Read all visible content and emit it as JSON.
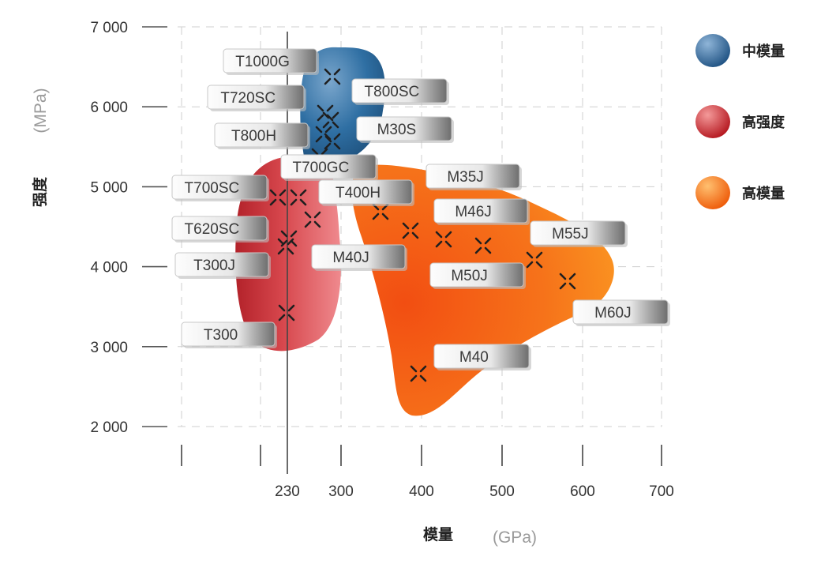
{
  "chart_data": {
    "type": "scatter",
    "title": "",
    "xlabel": "模量",
    "xunit": "(GPa)",
    "ylabel": "强度",
    "yunit": "(MPa)",
    "ylim": [
      2000,
      7000
    ],
    "yticks": [
      2000,
      3000,
      4000,
      5000,
      6000,
      7000
    ],
    "ytick_labels": [
      "2 000",
      "3 000",
      "4 000",
      "5 000",
      "6 000",
      "7 000"
    ],
    "xticks": [
      230,
      300,
      400,
      500,
      600,
      700
    ],
    "xtick_labels": [
      "230",
      "300",
      "400",
      "500",
      "600",
      "700"
    ],
    "grid": true,
    "legend_position": "right",
    "series": [
      {
        "name": "中模量",
        "color": "#2f6fa3"
      },
      {
        "name": "高强度",
        "color": "#c9302c"
      },
      {
        "name": "高模量",
        "color": "#f36a10"
      }
    ],
    "points": [
      {
        "label": "T1000G",
        "x": 294,
        "y": 6350
      },
      {
        "label": "T720SC",
        "x": 262,
        "y": 5950
      },
      {
        "label": "T800SC",
        "x": 292,
        "y": 5950
      },
      {
        "label": "T800H",
        "x": 294,
        "y": 5500
      },
      {
        "label": "M30S",
        "x": 294,
        "y": 5750
      },
      {
        "label": "T700GC",
        "x": 280,
        "y": 5600
      },
      {
        "label": "T700SC",
        "x": 230,
        "y": 4850
      },
      {
        "label": "T620SC",
        "x": 265,
        "y": 4550
      },
      {
        "label": "T400H",
        "x": 250,
        "y": 4850
      },
      {
        "label": "T300J",
        "x": 230,
        "y": 4250
      },
      {
        "label": "M40J",
        "x": 378,
        "y": 4400
      },
      {
        "label": "T300",
        "x": 230,
        "y": 3450
      },
      {
        "label": "M35J",
        "x": 343,
        "y": 4700
      },
      {
        "label": "M46J",
        "x": 425,
        "y": 4350
      },
      {
        "label": "M55J",
        "x": 540,
        "y": 4050
      },
      {
        "label": "M50J",
        "x": 474,
        "y": 4250
      },
      {
        "label": "M60J",
        "x": 585,
        "y": 3800
      },
      {
        "label": "M40",
        "x": 392,
        "y": 2650
      }
    ],
    "extra_points": [
      {
        "x": 224,
        "y": 4850
      },
      {
        "x": 226,
        "y": 4300
      },
      {
        "x": 270,
        "y": 5850
      },
      {
        "x": 262,
        "y": 5750
      }
    ]
  }
}
